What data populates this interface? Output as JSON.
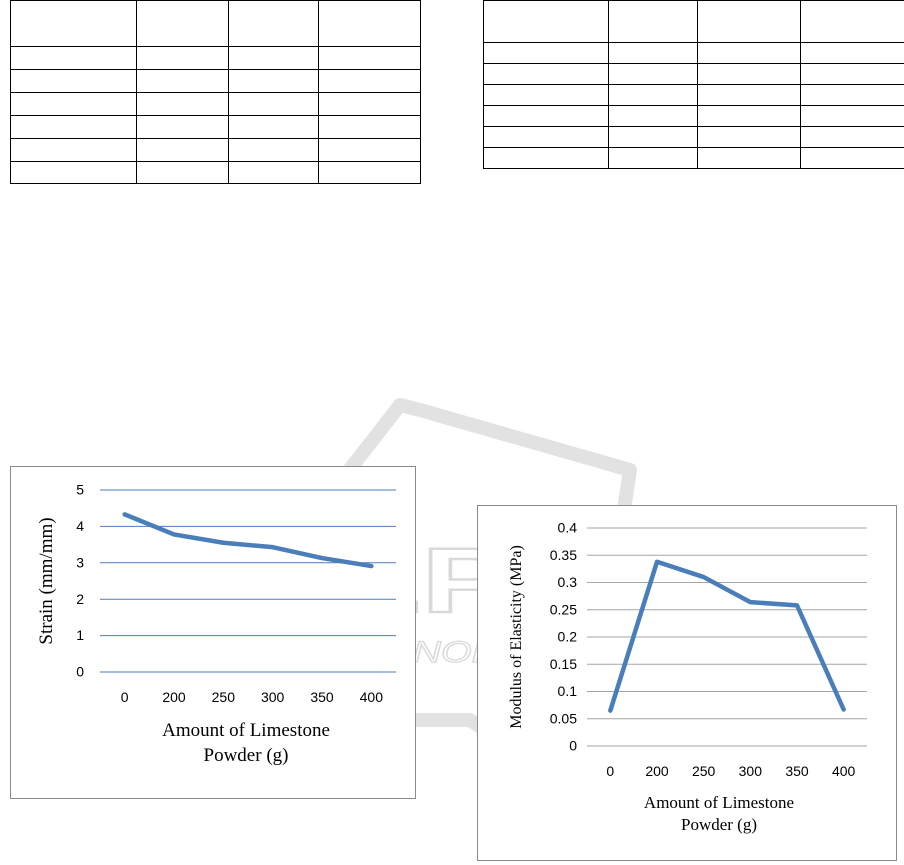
{
  "tables": {
    "left": {
      "rows": 7,
      "cols": 4
    },
    "right": {
      "rows": 7,
      "cols": 4
    }
  },
  "watermark": {
    "main": "SCITEPRESS",
    "sub": "SCIENCE AND TECHNOLOGY PUBLICATIONS",
    "color": "#d9d9d9"
  },
  "chart_data": [
    {
      "type": "line",
      "categories": [
        "0",
        "200",
        "250",
        "300",
        "350",
        "400"
      ],
      "series": [
        {
          "values": [
            4.33,
            3.78,
            3.55,
            3.43,
            3.13,
            2.91
          ],
          "color": "#4a7ebb"
        }
      ],
      "title": "",
      "xlabel": "Amount of Limestone Powder (g)",
      "xlabel_lines": [
        "Amount of Limestone",
        "Powder (g)"
      ],
      "ylabel": "Strain (mm/mm)",
      "ylim": [
        0,
        5
      ],
      "yticks": [
        "0",
        "1",
        "2",
        "3",
        "4",
        "5"
      ],
      "grid": true,
      "grid_color": "#4a7ebb"
    },
    {
      "type": "line",
      "categories": [
        "0",
        "200",
        "250",
        "300",
        "350",
        "400"
      ],
      "series": [
        {
          "values": [
            0.065,
            0.338,
            0.31,
            0.264,
            0.258,
            0.067
          ],
          "color": "#4a7ebb"
        }
      ],
      "title": "",
      "xlabel": "Amount of Limestone Powder (g)",
      "xlabel_lines": [
        "Amount of Limestone",
        "Powder (g)"
      ],
      "ylabel": "Modulus of Elasticity (MPa)",
      "ylim": [
        0,
        0.4
      ],
      "yticks": [
        "0",
        "0.05",
        "0.1",
        "0.15",
        "0.2",
        "0.25",
        "0.3",
        "0.35",
        "0.4"
      ],
      "grid": true,
      "grid_color": "#a6a6a6"
    }
  ]
}
